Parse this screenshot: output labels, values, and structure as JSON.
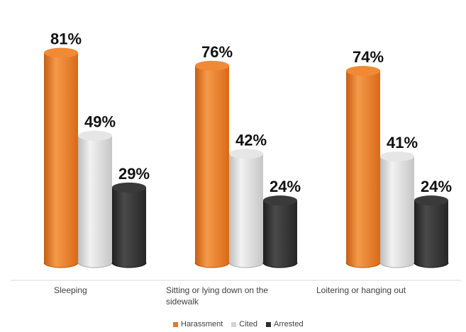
{
  "chart_data": {
    "type": "bar",
    "style": "3d-cylinder",
    "categories": [
      "Sleeping",
      "Sitting or lying down on the sidewalk",
      "Loitering or hanging out"
    ],
    "series": [
      {
        "name": "Harassment",
        "values": [
          81,
          76,
          74
        ],
        "labels": [
          "81%",
          "76%",
          "74%"
        ],
        "color": "#e87722"
      },
      {
        "name": "Cited",
        "values": [
          49,
          42,
          41
        ],
        "labels": [
          "49%",
          "42%",
          "41%"
        ],
        "color": "#d4d4d4"
      },
      {
        "name": "Arrested",
        "values": [
          29,
          24,
          24
        ],
        "labels": [
          "29%",
          "24%",
          "24%"
        ],
        "color": "#2e2e2e"
      }
    ],
    "title": "",
    "xlabel": "",
    "ylabel": "",
    "ylim": [
      0,
      100
    ],
    "grid": false,
    "legend": "bottom"
  },
  "category_labels": [
    "Sleeping",
    "Sitting or lying down on the sidewalk",
    "Loitering or hanging out"
  ],
  "legend": {
    "items": [
      {
        "label": "Harassment",
        "color": "#e87722"
      },
      {
        "label": "Cited",
        "color": "#d4d4d4"
      },
      {
        "label": "Arrested",
        "color": "#2e2e2e"
      }
    ]
  }
}
